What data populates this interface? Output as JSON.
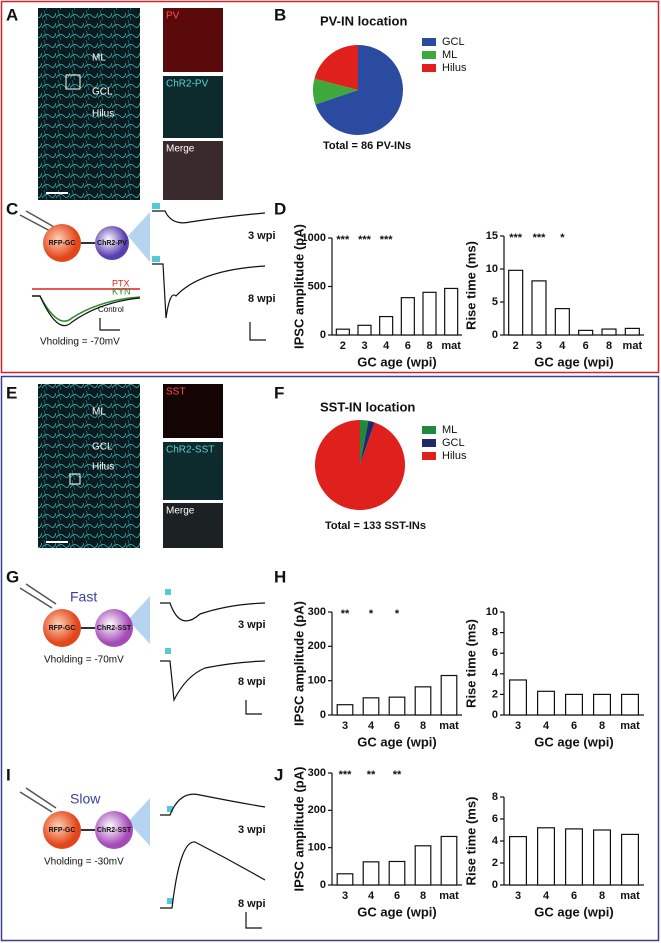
{
  "figure": {
    "panel_letters": [
      "A",
      "B",
      "C",
      "D",
      "E",
      "F",
      "G",
      "H",
      "I",
      "J"
    ],
    "a": {
      "regions": [
        "ML",
        "GCL",
        "Hilus"
      ],
      "insets": [
        "PV",
        "ChR2-PV",
        "Merge"
      ]
    },
    "c": {
      "cells": [
        "RFP-GC",
        "ChR2-PV"
      ],
      "drugs": [
        "PTX",
        "KYN",
        "Control"
      ],
      "holding": "Vholding = -70mV",
      "ages": [
        "3 wpi",
        "8 wpi"
      ]
    },
    "e": {
      "regions": [
        "ML",
        "GCL",
        "Hilus"
      ],
      "insets": [
        "SST",
        "ChR2-SST",
        "Merge"
      ]
    },
    "g": {
      "kinetics": "Fast",
      "cells": [
        "RFP-GC",
        "ChR2-SST"
      ],
      "holding": "Vholding = -70mV",
      "ages": [
        "3 wpi",
        "8 wpi"
      ]
    },
    "i": {
      "kinetics": "Slow",
      "cells": [
        "RFP-GC",
        "ChR2-SST"
      ],
      "holding": "Vholding = -30mV",
      "ages": [
        "3 wpi",
        "8 wpi"
      ]
    }
  },
  "chart_data": [
    {
      "type": "pie",
      "title": "PV-IN location",
      "categories": [
        "GCL",
        "ML",
        "Hilus"
      ],
      "values": [
        60,
        8,
        18
      ],
      "colors": [
        "#2a4ba0",
        "#3ea83a",
        "#e0201c"
      ],
      "caption": "Total = 86 PV-INs"
    },
    {
      "type": "bar",
      "ylabel": "IPSC amplitude (pA)",
      "xlabel": "GC age (wpi)",
      "categories": [
        "2",
        "3",
        "4",
        "6",
        "8",
        "mat"
      ],
      "values": [
        60,
        100,
        190,
        385,
        440,
        480
      ],
      "annotations": [
        "***",
        "***",
        "***",
        null,
        null,
        null
      ],
      "ylim": [
        0,
        1000
      ],
      "yticks": [
        0,
        500,
        1000
      ],
      "color": "#ffffff"
    },
    {
      "type": "bar",
      "ylabel": "Rise time (ms)",
      "xlabel": "GC age (wpi)",
      "categories": [
        "2",
        "3",
        "4",
        "6",
        "8",
        "mat"
      ],
      "values": [
        9.8,
        8.2,
        4.0,
        0.7,
        0.9,
        1.0
      ],
      "annotations": [
        "***",
        "***",
        "*",
        null,
        null,
        null
      ],
      "ylim": [
        0,
        15
      ],
      "yticks": [
        0,
        5,
        10,
        15
      ],
      "color": "#ffffff"
    },
    {
      "type": "pie",
      "title": "SST-IN location",
      "categories": [
        "ML",
        "GCL",
        "Hilus"
      ],
      "values": [
        4,
        3,
        126
      ],
      "colors": [
        "#1d8a3c",
        "#1f2a6e",
        "#e0201c"
      ],
      "caption": "Total = 133 SST-INs"
    },
    {
      "type": "bar",
      "ylabel": "IPSC amplitude (pA)",
      "xlabel": "GC age (wpi)",
      "categories": [
        "3",
        "4",
        "6",
        "8",
        "mat"
      ],
      "values": [
        30,
        50,
        52,
        82,
        115
      ],
      "annotations": [
        "**",
        "*",
        "*",
        null,
        null
      ],
      "ylim": [
        0,
        300
      ],
      "yticks": [
        0,
        100,
        200,
        300
      ],
      "color": "#ffffff"
    },
    {
      "type": "bar",
      "ylabel": "Rise time (ms)",
      "xlabel": "GC age (wpi)",
      "categories": [
        "3",
        "4",
        "6",
        "8",
        "mat"
      ],
      "values": [
        3.4,
        2.3,
        2.0,
        2.0,
        2.0
      ],
      "ylim": [
        0,
        10
      ],
      "yticks": [
        0,
        2,
        4,
        6,
        8,
        10
      ],
      "color": "#ffffff"
    },
    {
      "type": "bar",
      "ylabel": "IPSC amplitude (pA)",
      "xlabel": "GC age (wpi)",
      "categories": [
        "3",
        "4",
        "6",
        "8",
        "mat"
      ],
      "values": [
        30,
        62,
        63,
        105,
        130
      ],
      "annotations": [
        "***",
        "**",
        "**",
        null,
        null
      ],
      "ylim": [
        0,
        300
      ],
      "yticks": [
        0,
        100,
        200,
        300
      ],
      "color": "#ffffff"
    },
    {
      "type": "bar",
      "ylabel": "Rise time (ms)",
      "xlabel": "GC age (wpi)",
      "categories": [
        "3",
        "4",
        "6",
        "8",
        "mat"
      ],
      "values": [
        4.4,
        5.2,
        5.1,
        5.0,
        4.6
      ],
      "ylim": [
        0,
        8
      ],
      "yticks": [
        0,
        2,
        4,
        6,
        8
      ],
      "color": "#ffffff"
    }
  ]
}
